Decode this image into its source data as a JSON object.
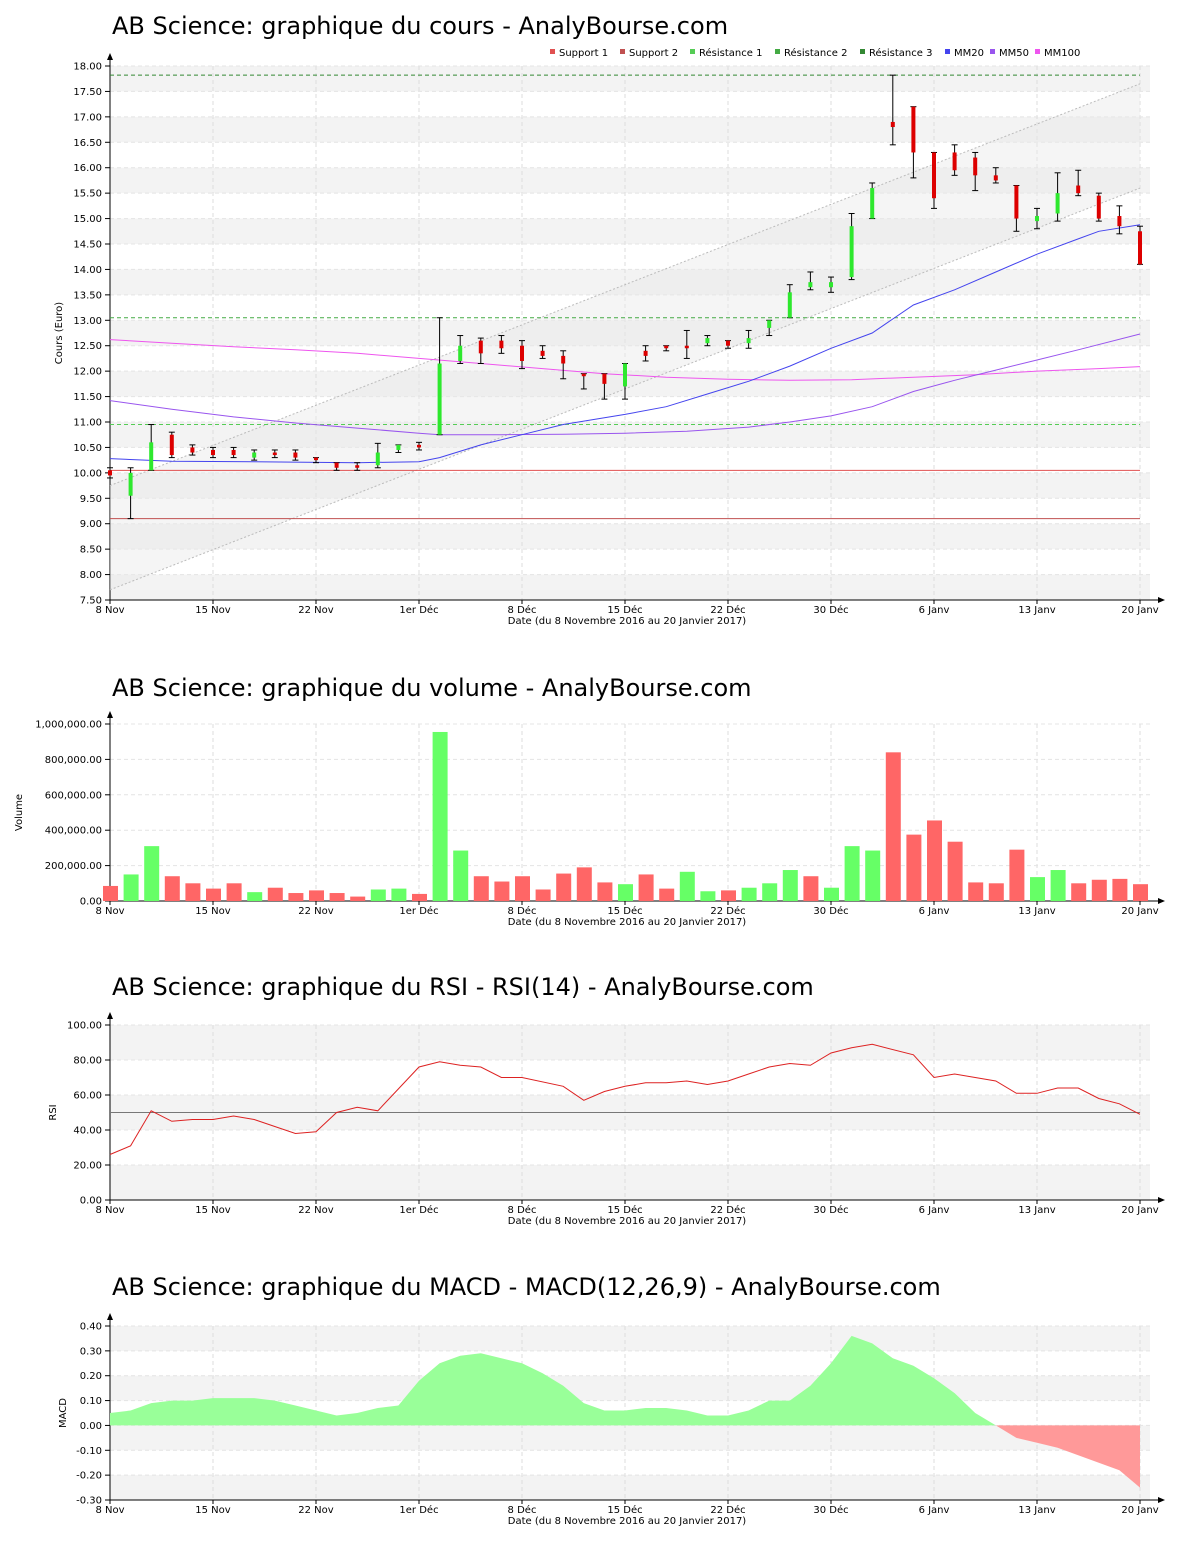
{
  "chart_data": [
    {
      "type": "candlestick",
      "title": "AB Science: graphique du cours - AnalyBourse.com",
      "xlabel": "Date (du 8 Novembre 2016 au 20 Janvier 2017)",
      "ylabel": "Cours (Euro)",
      "ylim": [
        7.5,
        18.0
      ],
      "yticks": [
        "7.50",
        "8.00",
        "8.50",
        "9.00",
        "9.50",
        "10.00",
        "10.50",
        "11.00",
        "11.50",
        "12.00",
        "12.50",
        "13.00",
        "13.50",
        "14.00",
        "14.50",
        "15.00",
        "15.50",
        "16.00",
        "16.50",
        "17.00",
        "17.50",
        "18.00"
      ],
      "xtick_labels": [
        "8 Nov",
        "15 Nov",
        "22 Nov",
        "1er Déc",
        "8 Déc",
        "15 Déc",
        "22 Déc",
        "30 Déc",
        "6 Janv",
        "13 Janv",
        "20 Janv"
      ],
      "legend": [
        "Support 1",
        "Support 2",
        "Résistance 1",
        "Résistance 2",
        "Résistance 3",
        "MM20",
        "MM50",
        "MM100"
      ],
      "legend_placement": "top-right",
      "grid": true,
      "colors": {
        "up": "#2ee82e",
        "down": "#dd0000",
        "support1": "#e05050",
        "support2": "#c05050",
        "res1": "#55cc55",
        "res2": "#44aa44",
        "res3": "#338833",
        "mm20": "#4444ee",
        "mm50": "#9955ee",
        "mm100": "#ee55ee",
        "trend": "#bbbbbb"
      },
      "levels": {
        "support1": 10.05,
        "support2": 9.1,
        "resistance1": 10.95,
        "resistance2": 13.05,
        "resistance3": 17.82
      },
      "candles": [
        {
          "o": 10.05,
          "h": 10.1,
          "l": 9.9,
          "c": 9.95
        },
        {
          "o": 9.55,
          "h": 10.1,
          "l": 9.1,
          "c": 10.0
        },
        {
          "o": 10.05,
          "h": 10.95,
          "l": 10.05,
          "c": 10.6
        },
        {
          "o": 10.75,
          "h": 10.8,
          "l": 10.3,
          "c": 10.35
        },
        {
          "o": 10.5,
          "h": 10.55,
          "l": 10.35,
          "c": 10.4
        },
        {
          "o": 10.45,
          "h": 10.5,
          "l": 10.3,
          "c": 10.35
        },
        {
          "o": 10.45,
          "h": 10.5,
          "l": 10.3,
          "c": 10.35
        },
        {
          "o": 10.3,
          "h": 10.45,
          "l": 10.25,
          "c": 10.4
        },
        {
          "o": 10.4,
          "h": 10.45,
          "l": 10.3,
          "c": 10.35
        },
        {
          "o": 10.4,
          "h": 10.45,
          "l": 10.25,
          "c": 10.3
        },
        {
          "o": 10.3,
          "h": 10.3,
          "l": 10.2,
          "c": 10.25
        },
        {
          "o": 10.2,
          "h": 10.2,
          "l": 10.05,
          "c": 10.1
        },
        {
          "o": 10.15,
          "h": 10.2,
          "l": 10.05,
          "c": 10.1
        },
        {
          "o": 10.15,
          "h": 10.58,
          "l": 10.1,
          "c": 10.4
        },
        {
          "o": 10.45,
          "h": 10.55,
          "l": 10.4,
          "c": 10.55
        },
        {
          "o": 10.55,
          "h": 10.6,
          "l": 10.45,
          "c": 10.5
        },
        {
          "o": 10.75,
          "h": 13.05,
          "l": 10.75,
          "c": 12.15
        },
        {
          "o": 12.2,
          "h": 12.7,
          "l": 12.15,
          "c": 12.5
        },
        {
          "o": 12.6,
          "h": 12.65,
          "l": 12.15,
          "c": 12.35
        },
        {
          "o": 12.6,
          "h": 12.7,
          "l": 12.35,
          "c": 12.45
        },
        {
          "o": 12.5,
          "h": 12.6,
          "l": 12.05,
          "c": 12.2
        },
        {
          "o": 12.4,
          "h": 12.5,
          "l": 12.25,
          "c": 12.3
        },
        {
          "o": 12.3,
          "h": 12.4,
          "l": 11.85,
          "c": 12.15
        },
        {
          "o": 11.95,
          "h": 11.95,
          "l": 11.65,
          "c": 11.9
        },
        {
          "o": 11.95,
          "h": 11.95,
          "l": 11.45,
          "c": 11.75
        },
        {
          "o": 11.7,
          "h": 12.15,
          "l": 11.45,
          "c": 12.15
        },
        {
          "o": 12.4,
          "h": 12.5,
          "l": 12.2,
          "c": 12.3
        },
        {
          "o": 12.5,
          "h": 12.5,
          "l": 12.4,
          "c": 12.45
        },
        {
          "o": 12.5,
          "h": 12.8,
          "l": 12.25,
          "c": 12.45
        },
        {
          "o": 12.55,
          "h": 12.7,
          "l": 12.5,
          "c": 12.65
        },
        {
          "o": 12.6,
          "h": 12.6,
          "l": 12.45,
          "c": 12.5
        },
        {
          "o": 12.55,
          "h": 12.8,
          "l": 12.45,
          "c": 12.65
        },
        {
          "o": 12.85,
          "h": 13.0,
          "l": 12.7,
          "c": 13.0
        },
        {
          "o": 13.05,
          "h": 13.7,
          "l": 13.05,
          "c": 13.55
        },
        {
          "o": 13.65,
          "h": 13.95,
          "l": 13.6,
          "c": 13.75
        },
        {
          "o": 13.65,
          "h": 13.85,
          "l": 13.55,
          "c": 13.75
        },
        {
          "o": 13.85,
          "h": 15.1,
          "l": 13.8,
          "c": 14.85
        },
        {
          "o": 15.0,
          "h": 15.7,
          "l": 15.0,
          "c": 15.6
        },
        {
          "o": 16.9,
          "h": 17.82,
          "l": 16.45,
          "c": 16.8
        },
        {
          "o": 17.2,
          "h": 17.2,
          "l": 15.8,
          "c": 16.3
        },
        {
          "o": 16.3,
          "h": 16.3,
          "l": 15.2,
          "c": 15.4
        },
        {
          "o": 16.3,
          "h": 16.45,
          "l": 15.85,
          "c": 15.95
        },
        {
          "o": 16.2,
          "h": 16.3,
          "l": 15.55,
          "c": 15.85
        },
        {
          "o": 15.85,
          "h": 16.0,
          "l": 15.7,
          "c": 15.75
        },
        {
          "o": 15.65,
          "h": 15.65,
          "l": 14.75,
          "c": 15.0
        },
        {
          "o": 14.95,
          "h": 15.2,
          "l": 14.8,
          "c": 15.05
        },
        {
          "o": 15.1,
          "h": 15.9,
          "l": 14.95,
          "c": 15.5
        },
        {
          "o": 15.65,
          "h": 15.95,
          "l": 15.45,
          "c": 15.5
        },
        {
          "o": 15.45,
          "h": 15.5,
          "l": 14.95,
          "c": 15.0
        },
        {
          "o": 15.05,
          "h": 15.25,
          "l": 14.7,
          "c": 14.85
        },
        {
          "o": 14.75,
          "h": 14.85,
          "l": 14.1,
          "c": 14.1
        }
      ],
      "mm20": [
        [
          0,
          10.28
        ],
        [
          3,
          10.23
        ],
        [
          7,
          10.22
        ],
        [
          12,
          10.2
        ],
        [
          15,
          10.22
        ],
        [
          16,
          10.3
        ],
        [
          18,
          10.55
        ],
        [
          20,
          10.75
        ],
        [
          22,
          10.95
        ],
        [
          25,
          11.15
        ],
        [
          27,
          11.3
        ],
        [
          29,
          11.55
        ],
        [
          31,
          11.8
        ],
        [
          33,
          12.1
        ],
        [
          35,
          12.45
        ],
        [
          37,
          12.75
        ],
        [
          39,
          13.3
        ],
        [
          41,
          13.6
        ],
        [
          43,
          13.95
        ],
        [
          45,
          14.3
        ],
        [
          47,
          14.6
        ],
        [
          48,
          14.75
        ],
        [
          50,
          14.88
        ]
      ],
      "mm50": [
        [
          0,
          11.42
        ],
        [
          3,
          11.25
        ],
        [
          6,
          11.1
        ],
        [
          9,
          10.98
        ],
        [
          12,
          10.88
        ],
        [
          15,
          10.78
        ],
        [
          16,
          10.75
        ],
        [
          19,
          10.75
        ],
        [
          22,
          10.76
        ],
        [
          25,
          10.78
        ],
        [
          28,
          10.82
        ],
        [
          31,
          10.9
        ],
        [
          33,
          11.0
        ],
        [
          35,
          11.12
        ],
        [
          37,
          11.3
        ],
        [
          39,
          11.6
        ],
        [
          41,
          11.82
        ],
        [
          43,
          12.02
        ],
        [
          45,
          12.22
        ],
        [
          47,
          12.42
        ],
        [
          50,
          12.73
        ]
      ],
      "mm100": [
        [
          0,
          12.62
        ],
        [
          3,
          12.55
        ],
        [
          6,
          12.48
        ],
        [
          9,
          12.42
        ],
        [
          12,
          12.35
        ],
        [
          15,
          12.25
        ],
        [
          18,
          12.15
        ],
        [
          21,
          12.05
        ],
        [
          24,
          11.95
        ],
        [
          27,
          11.88
        ],
        [
          30,
          11.84
        ],
        [
          33,
          11.82
        ],
        [
          36,
          11.83
        ],
        [
          39,
          11.88
        ],
        [
          42,
          11.93
        ],
        [
          45,
          12.0
        ],
        [
          48,
          12.05
        ],
        [
          50,
          12.09
        ]
      ],
      "trend_channel": {
        "upper": [
          [
            0,
            9.75
          ],
          [
            50,
            17.65
          ]
        ],
        "lower": [
          [
            0,
            7.7
          ],
          [
            50,
            15.6
          ]
        ]
      }
    },
    {
      "type": "bar",
      "title": "AB Science: graphique du volume - AnalyBourse.com",
      "xlabel": "Date (du 8 Novembre 2016 au 20 Janvier 2017)",
      "ylabel": "Volume",
      "ylim": [
        0,
        1000000
      ],
      "yticks": [
        "0.00",
        "200,000.00",
        "400,000.00",
        "600,000.00",
        "800,000.00",
        "1,000,000.00"
      ],
      "xtick_labels": [
        "8 Nov",
        "15 Nov",
        "22 Nov",
        "1er Déc",
        "8 Déc",
        "15 Déc",
        "22 Déc",
        "30 Déc",
        "6 Janv",
        "13 Janv",
        "20 Janv"
      ],
      "grid": true,
      "values": [
        85000,
        150000,
        310000,
        140000,
        100000,
        70000,
        100000,
        50000,
        75000,
        45000,
        60000,
        45000,
        25000,
        65000,
        70000,
        40000,
        955000,
        285000,
        140000,
        110000,
        140000,
        65000,
        155000,
        190000,
        105000,
        95000,
        150000,
        70000,
        165000,
        55000,
        60000,
        75000,
        100000,
        175000,
        140000,
        75000,
        310000,
        285000,
        840000,
        375000,
        455000,
        335000,
        105000,
        100000,
        290000,
        135000,
        175000,
        100000,
        120000,
        125000,
        95000
      ],
      "colors_dir": [
        "d",
        "u",
        "u",
        "d",
        "d",
        "d",
        "d",
        "u",
        "d",
        "d",
        "d",
        "d",
        "d",
        "u",
        "u",
        "d",
        "u",
        "u",
        "d",
        "d",
        "d",
        "d",
        "d",
        "d",
        "d",
        "u",
        "d",
        "d",
        "u",
        "u",
        "d",
        "u",
        "u",
        "u",
        "d",
        "u",
        "u",
        "u",
        "d",
        "d",
        "d",
        "d",
        "d",
        "d",
        "d",
        "u",
        "u",
        "d",
        "d",
        "d",
        "d"
      ]
    },
    {
      "type": "line",
      "title": "AB Science: graphique du RSI - RSI(14) - AnalyBourse.com",
      "xlabel": "Date (du 8 Novembre 2016 au 20 Janvier 2017)",
      "ylabel": "RSI",
      "ylim": [
        0,
        100
      ],
      "yticks": [
        "0.00",
        "20.00",
        "40.00",
        "60.00",
        "80.00",
        "100.00"
      ],
      "xtick_labels": [
        "8 Nov",
        "15 Nov",
        "22 Nov",
        "1er Déc",
        "8 Déc",
        "15 Déc",
        "22 Déc",
        "30 Déc",
        "6 Janv",
        "13 Janv",
        "20 Janv"
      ],
      "grid": true,
      "reference": 50,
      "values": [
        26,
        31,
        51,
        45,
        46,
        46,
        48,
        46,
        42,
        38,
        39,
        50,
        53,
        51,
        76,
        79,
        77,
        76,
        70,
        70,
        65,
        57,
        62,
        65,
        67,
        67,
        68,
        66,
        68,
        72,
        76,
        78,
        77,
        84,
        87,
        89,
        83,
        70,
        72,
        70,
        68,
        61,
        61,
        64,
        64,
        58,
        55,
        49
      ],
      "x": [
        0,
        1,
        2,
        3,
        4,
        5,
        6,
        7,
        8,
        9,
        10,
        11,
        12,
        13,
        15,
        16,
        17,
        18,
        19,
        20,
        22,
        23,
        24,
        25,
        26,
        27,
        28,
        29,
        30,
        31,
        32,
        33,
        34,
        35,
        36,
        37,
        39,
        40,
        41,
        42,
        43,
        44,
        45,
        46,
        47,
        48,
        49,
        50
      ]
    },
    {
      "type": "area",
      "title": "AB Science: graphique du MACD - MACD(12,26,9) - AnalyBourse.com",
      "xlabel": "Date (du 8 Novembre 2016 au 20 Janvier 2017)",
      "ylabel": "MACD",
      "ylim": [
        -0.3,
        0.4
      ],
      "yticks": [
        "-0.30",
        "-0.20",
        "-0.10",
        "0.00",
        "0.10",
        "0.20",
        "0.30",
        "0.40"
      ],
      "xtick_labels": [
        "8 Nov",
        "15 Nov",
        "22 Nov",
        "1er Déc",
        "8 Déc",
        "15 Déc",
        "22 Déc",
        "30 Déc",
        "6 Janv",
        "13 Janv",
        "20 Janv"
      ],
      "grid": true,
      "colors": {
        "pos": "#99ff99",
        "neg": "#ff9999"
      },
      "x": [
        0,
        1,
        2,
        3,
        4,
        5,
        6,
        7,
        8,
        9,
        10,
        11,
        12,
        13,
        14,
        15,
        16,
        17,
        18,
        19,
        20,
        21,
        22,
        23,
        24,
        25,
        26,
        27,
        28,
        29,
        30,
        31,
        32,
        33,
        34,
        35,
        36,
        37,
        38,
        39,
        40,
        41,
        42,
        43,
        44,
        45,
        46,
        47,
        48,
        49,
        50
      ],
      "values": [
        0.05,
        0.06,
        0.09,
        0.1,
        0.1,
        0.11,
        0.11,
        0.11,
        0.1,
        0.08,
        0.06,
        0.04,
        0.05,
        0.07,
        0.08,
        0.18,
        0.25,
        0.28,
        0.29,
        0.27,
        0.25,
        0.21,
        0.16,
        0.09,
        0.06,
        0.06,
        0.07,
        0.07,
        0.06,
        0.04,
        0.04,
        0.06,
        0.1,
        0.1,
        0.16,
        0.25,
        0.36,
        0.33,
        0.27,
        0.24,
        0.19,
        0.13,
        0.05,
        0.0,
        -0.05,
        -0.07,
        -0.09,
        -0.12,
        -0.15,
        -0.18,
        -0.25
      ]
    }
  ]
}
